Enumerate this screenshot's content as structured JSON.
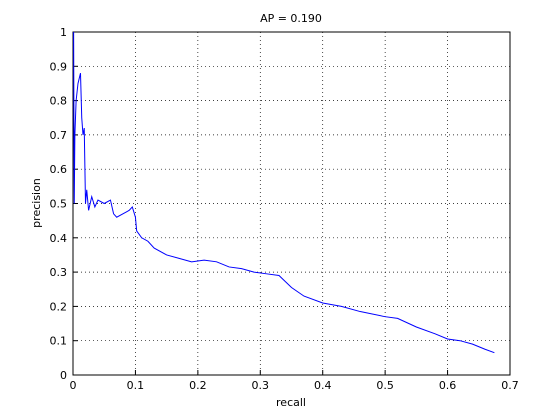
{
  "chart_data": {
    "type": "line",
    "title": "AP = 0.190",
    "x_label": "recall",
    "y_label": "precision",
    "x": [
      0.001,
      0.002,
      0.003,
      0.005,
      0.008,
      0.012,
      0.014,
      0.016,
      0.018,
      0.02,
      0.022,
      0.025,
      0.03,
      0.035,
      0.04,
      0.05,
      0.06,
      0.065,
      0.07,
      0.08,
      0.09,
      0.095,
      0.1,
      0.102,
      0.11,
      0.12,
      0.13,
      0.15,
      0.17,
      0.19,
      0.21,
      0.23,
      0.25,
      0.27,
      0.29,
      0.31,
      0.33,
      0.35,
      0.37,
      0.4,
      0.43,
      0.46,
      0.5,
      0.52,
      0.55,
      0.58,
      0.6,
      0.62,
      0.64,
      0.66,
      0.675
    ],
    "series": [
      {
        "color": "#0000ff",
        "values": [
          1.0,
          0.5,
          0.7,
          0.8,
          0.85,
          0.88,
          0.75,
          0.7,
          0.72,
          0.5,
          0.54,
          0.48,
          0.52,
          0.49,
          0.51,
          0.5,
          0.51,
          0.47,
          0.46,
          0.47,
          0.48,
          0.49,
          0.46,
          0.42,
          0.4,
          0.39,
          0.37,
          0.35,
          0.34,
          0.33,
          0.335,
          0.33,
          0.315,
          0.31,
          0.3,
          0.295,
          0.29,
          0.255,
          0.23,
          0.21,
          0.2,
          0.185,
          0.17,
          0.165,
          0.14,
          0.12,
          0.105,
          0.1,
          0.09,
          0.075,
          0.065
        ]
      }
    ],
    "xlim": [
      0,
      0.7
    ],
    "xticks": [
      0,
      0.1,
      0.2,
      0.3,
      0.4,
      0.5,
      0.6,
      0.7
    ],
    "ylim": [
      0,
      1
    ],
    "yticks": [
      0,
      0.1,
      0.2,
      0.3,
      0.4,
      0.5,
      0.6,
      0.7,
      0.8,
      0.9,
      1
    ],
    "grid": true
  }
}
